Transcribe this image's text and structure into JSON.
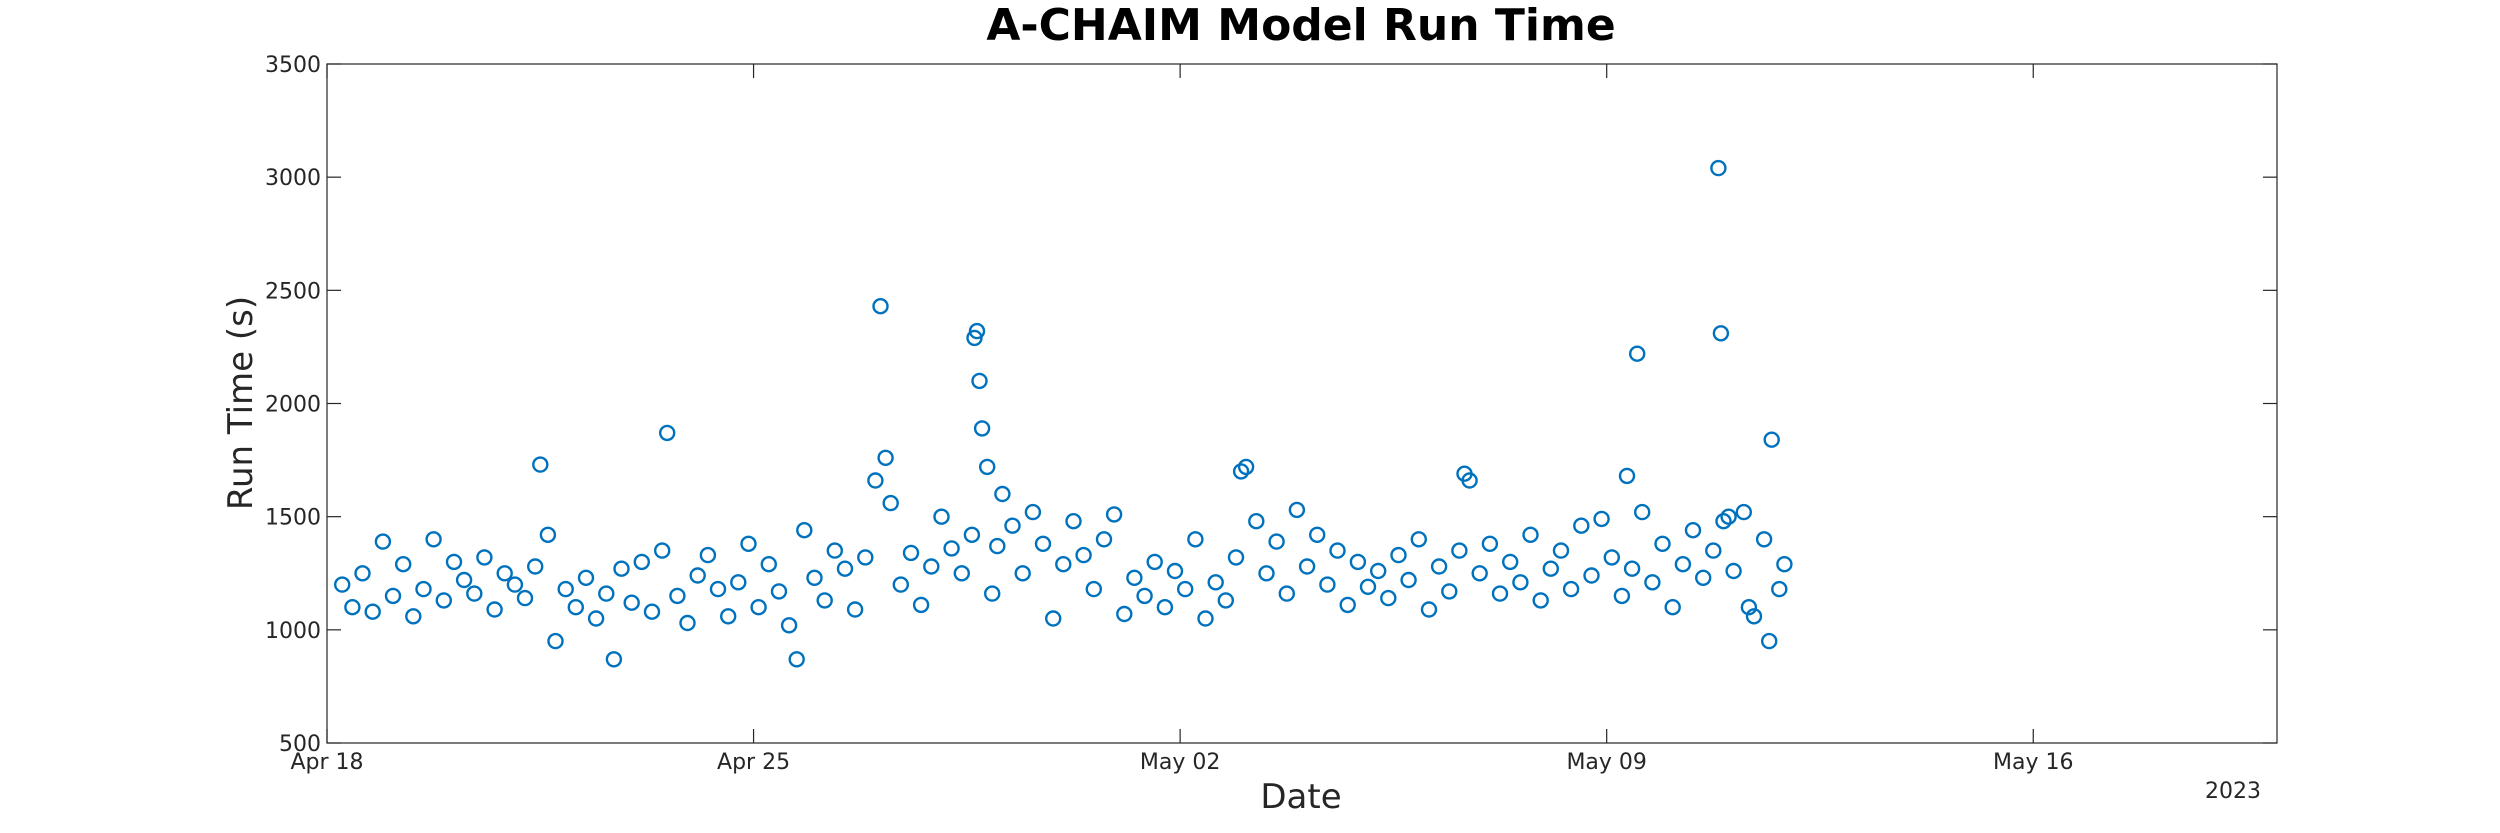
{
  "chart_data": {
    "type": "scatter",
    "title": "A-CHAIM Model Run Time",
    "xlabel": "Date",
    "ylabel": "Run Time (s)",
    "xlim": [
      "2023-04-18",
      "2023-05-20"
    ],
    "ylim": [
      500,
      3500
    ],
    "xticks": [
      "2023-04-18",
      "2023-04-25",
      "2023-05-02",
      "2023-05-09",
      "2023-05-16"
    ],
    "xtick_labels": [
      "Apr 18",
      "Apr 25",
      "May 02",
      "May 09",
      "May 16"
    ],
    "xaxis_secondary_label": "2023",
    "yticks": [
      500,
      1000,
      1500,
      2000,
      2500,
      3000,
      3500
    ],
    "grid": false,
    "marker": "circle-open",
    "marker_color": "#0072BD",
    "series": [
      {
        "values": [
          [
            "2023-04-18T06:00",
            1200
          ],
          [
            "2023-04-18T10:00",
            1100
          ],
          [
            "2023-04-18T14:00",
            1250
          ],
          [
            "2023-04-18T18:00",
            1080
          ],
          [
            "2023-04-18T22:00",
            1390
          ],
          [
            "2023-04-19T02:00",
            1150
          ],
          [
            "2023-04-19T06:00",
            1290
          ],
          [
            "2023-04-19T10:00",
            1060
          ],
          [
            "2023-04-19T14:00",
            1180
          ],
          [
            "2023-04-19T18:00",
            1400
          ],
          [
            "2023-04-19T22:00",
            1130
          ],
          [
            "2023-04-20T02:00",
            1300
          ],
          [
            "2023-04-20T06:00",
            1220
          ],
          [
            "2023-04-20T10:00",
            1160
          ],
          [
            "2023-04-20T14:00",
            1320
          ],
          [
            "2023-04-20T18:00",
            1090
          ],
          [
            "2023-04-20T22:00",
            1250
          ],
          [
            "2023-04-21T02:00",
            1200
          ],
          [
            "2023-04-21T06:00",
            1140
          ],
          [
            "2023-04-21T10:00",
            1280
          ],
          [
            "2023-04-21T12:00",
            1730
          ],
          [
            "2023-04-21T15:00",
            1420
          ],
          [
            "2023-04-21T18:00",
            950
          ],
          [
            "2023-04-21T22:00",
            1180
          ],
          [
            "2023-04-22T02:00",
            1100
          ],
          [
            "2023-04-22T06:00",
            1230
          ],
          [
            "2023-04-22T10:00",
            1050
          ],
          [
            "2023-04-22T14:00",
            1160
          ],
          [
            "2023-04-22T17:00",
            870
          ],
          [
            "2023-04-22T20:00",
            1270
          ],
          [
            "2023-04-23T00:00",
            1120
          ],
          [
            "2023-04-23T04:00",
            1300
          ],
          [
            "2023-04-23T08:00",
            1080
          ],
          [
            "2023-04-23T12:00",
            1350
          ],
          [
            "2023-04-23T14:00",
            1870
          ],
          [
            "2023-04-23T18:00",
            1150
          ],
          [
            "2023-04-23T22:00",
            1030
          ],
          [
            "2023-04-24T02:00",
            1240
          ],
          [
            "2023-04-24T06:00",
            1330
          ],
          [
            "2023-04-24T10:00",
            1180
          ],
          [
            "2023-04-24T14:00",
            1060
          ],
          [
            "2023-04-24T18:00",
            1210
          ],
          [
            "2023-04-24T22:00",
            1380
          ],
          [
            "2023-04-25T02:00",
            1100
          ],
          [
            "2023-04-25T06:00",
            1290
          ],
          [
            "2023-04-25T10:00",
            1170
          ],
          [
            "2023-04-25T14:00",
            1020
          ],
          [
            "2023-04-25T17:00",
            870
          ],
          [
            "2023-04-25T20:00",
            1440
          ],
          [
            "2023-04-26T00:00",
            1230
          ],
          [
            "2023-04-26T04:00",
            1130
          ],
          [
            "2023-04-26T08:00",
            1350
          ],
          [
            "2023-04-26T12:00",
            1270
          ],
          [
            "2023-04-26T16:00",
            1090
          ],
          [
            "2023-04-26T20:00",
            1320
          ],
          [
            "2023-04-27T00:00",
            1660
          ],
          [
            "2023-04-27T02:00",
            2430
          ],
          [
            "2023-04-27T04:00",
            1760
          ],
          [
            "2023-04-27T06:00",
            1560
          ],
          [
            "2023-04-27T10:00",
            1200
          ],
          [
            "2023-04-27T14:00",
            1340
          ],
          [
            "2023-04-27T18:00",
            1110
          ],
          [
            "2023-04-27T22:00",
            1280
          ],
          [
            "2023-04-28T02:00",
            1500
          ],
          [
            "2023-04-28T06:00",
            1360
          ],
          [
            "2023-04-28T10:00",
            1250
          ],
          [
            "2023-04-28T14:00",
            1420
          ],
          [
            "2023-04-28T15:00",
            2290
          ],
          [
            "2023-04-28T16:00",
            2320
          ],
          [
            "2023-04-28T17:00",
            2100
          ],
          [
            "2023-04-28T18:00",
            1890
          ],
          [
            "2023-04-28T20:00",
            1720
          ],
          [
            "2023-04-28T22:00",
            1160
          ],
          [
            "2023-04-29T00:00",
            1370
          ],
          [
            "2023-04-29T02:00",
            1600
          ],
          [
            "2023-04-29T06:00",
            1460
          ],
          [
            "2023-04-29T10:00",
            1250
          ],
          [
            "2023-04-29T14:00",
            1520
          ],
          [
            "2023-04-29T18:00",
            1380
          ],
          [
            "2023-04-29T22:00",
            1050
          ],
          [
            "2023-04-30T02:00",
            1290
          ],
          [
            "2023-04-30T06:00",
            1480
          ],
          [
            "2023-04-30T10:00",
            1330
          ],
          [
            "2023-04-30T14:00",
            1180
          ],
          [
            "2023-04-30T18:00",
            1400
          ],
          [
            "2023-04-30T22:00",
            1510
          ],
          [
            "2023-05-01T02:00",
            1070
          ],
          [
            "2023-05-01T06:00",
            1230
          ],
          [
            "2023-05-01T10:00",
            1150
          ],
          [
            "2023-05-01T14:00",
            1300
          ],
          [
            "2023-05-01T18:00",
            1100
          ],
          [
            "2023-05-01T22:00",
            1260
          ],
          [
            "2023-05-02T02:00",
            1180
          ],
          [
            "2023-05-02T06:00",
            1400
          ],
          [
            "2023-05-02T10:00",
            1050
          ],
          [
            "2023-05-02T14:00",
            1210
          ],
          [
            "2023-05-02T18:00",
            1130
          ],
          [
            "2023-05-02T22:00",
            1320
          ],
          [
            "2023-05-03T00:00",
            1700
          ],
          [
            "2023-05-03T02:00",
            1720
          ],
          [
            "2023-05-03T06:00",
            1480
          ],
          [
            "2023-05-03T10:00",
            1250
          ],
          [
            "2023-05-03T14:00",
            1390
          ],
          [
            "2023-05-03T18:00",
            1160
          ],
          [
            "2023-05-03T22:00",
            1530
          ],
          [
            "2023-05-04T02:00",
            1280
          ],
          [
            "2023-05-04T06:00",
            1420
          ],
          [
            "2023-05-04T10:00",
            1200
          ],
          [
            "2023-05-04T14:00",
            1350
          ],
          [
            "2023-05-04T18:00",
            1110
          ],
          [
            "2023-05-04T22:00",
            1300
          ],
          [
            "2023-05-05T02:00",
            1190
          ],
          [
            "2023-05-05T06:00",
            1260
          ],
          [
            "2023-05-05T10:00",
            1140
          ],
          [
            "2023-05-05T14:00",
            1330
          ],
          [
            "2023-05-05T18:00",
            1220
          ],
          [
            "2023-05-05T22:00",
            1400
          ],
          [
            "2023-05-06T02:00",
            1090
          ],
          [
            "2023-05-06T06:00",
            1280
          ],
          [
            "2023-05-06T10:00",
            1170
          ],
          [
            "2023-05-06T14:00",
            1350
          ],
          [
            "2023-05-06T16:00",
            1690
          ],
          [
            "2023-05-06T18:00",
            1660
          ],
          [
            "2023-05-06T22:00",
            1250
          ],
          [
            "2023-05-07T02:00",
            1380
          ],
          [
            "2023-05-07T06:00",
            1160
          ],
          [
            "2023-05-07T10:00",
            1300
          ],
          [
            "2023-05-07T14:00",
            1210
          ],
          [
            "2023-05-07T18:00",
            1420
          ],
          [
            "2023-05-07T22:00",
            1130
          ],
          [
            "2023-05-08T02:00",
            1270
          ],
          [
            "2023-05-08T06:00",
            1350
          ],
          [
            "2023-05-08T10:00",
            1180
          ],
          [
            "2023-05-08T14:00",
            1460
          ],
          [
            "2023-05-08T18:00",
            1240
          ],
          [
            "2023-05-08T22:00",
            1490
          ],
          [
            "2023-05-09T02:00",
            1320
          ],
          [
            "2023-05-09T06:00",
            1150
          ],
          [
            "2023-05-09T08:00",
            1680
          ],
          [
            "2023-05-09T10:00",
            1270
          ],
          [
            "2023-05-09T12:00",
            2220
          ],
          [
            "2023-05-09T14:00",
            1520
          ],
          [
            "2023-05-09T18:00",
            1210
          ],
          [
            "2023-05-09T22:00",
            1380
          ],
          [
            "2023-05-10T02:00",
            1100
          ],
          [
            "2023-05-10T06:00",
            1290
          ],
          [
            "2023-05-10T10:00",
            1440
          ],
          [
            "2023-05-10T14:00",
            1230
          ],
          [
            "2023-05-10T18:00",
            1350
          ],
          [
            "2023-05-10T20:00",
            3040
          ],
          [
            "2023-05-10T21:00",
            2310
          ],
          [
            "2023-05-10T22:00",
            1480
          ],
          [
            "2023-05-11T00:00",
            1500
          ],
          [
            "2023-05-11T02:00",
            1260
          ],
          [
            "2023-05-11T06:00",
            1520
          ],
          [
            "2023-05-11T08:00",
            1100
          ],
          [
            "2023-05-11T10:00",
            1060
          ],
          [
            "2023-05-11T14:00",
            1400
          ],
          [
            "2023-05-11T16:00",
            950
          ],
          [
            "2023-05-11T17:00",
            1840
          ],
          [
            "2023-05-11T20:00",
            1180
          ],
          [
            "2023-05-11T22:00",
            1290
          ]
        ]
      }
    ]
  }
}
